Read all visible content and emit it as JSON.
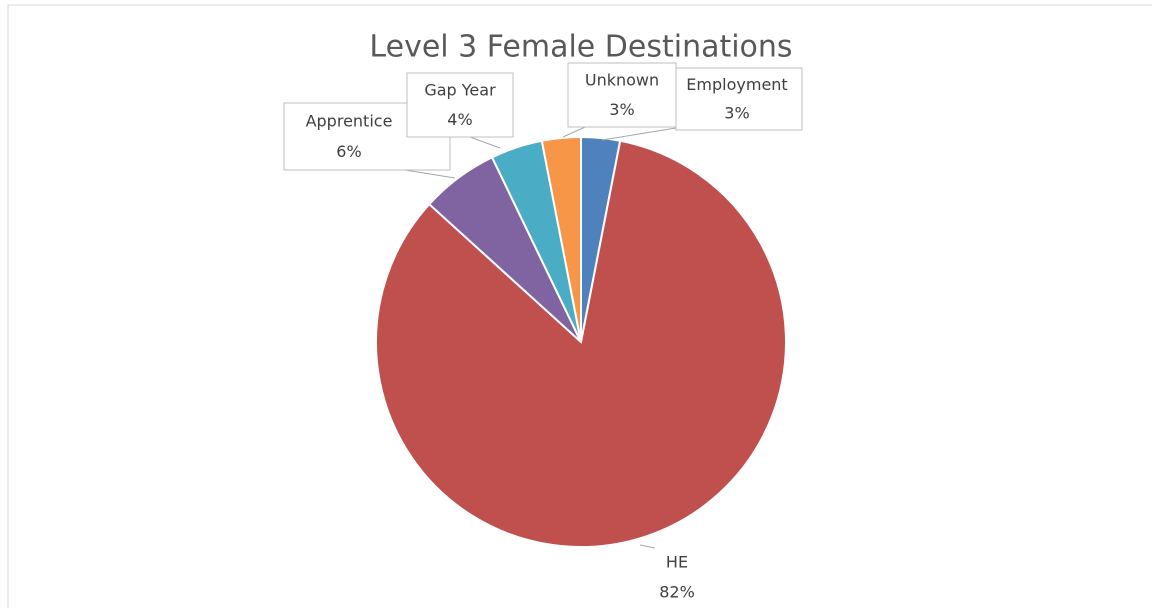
{
  "chart_data": {
    "type": "pie",
    "title": "Level 3 Female Destinations",
    "categories": [
      "Employment",
      "HE",
      "Apprentice",
      "Gap Year",
      "Unknown"
    ],
    "values": [
      3,
      82,
      6,
      4,
      3
    ],
    "value_labels": [
      "3%",
      "82%",
      "6%",
      "4%",
      "3%"
    ],
    "colors": [
      "#4f81bd",
      "#c0504d",
      "#8064a2",
      "#4bacc6",
      "#f79646"
    ]
  }
}
